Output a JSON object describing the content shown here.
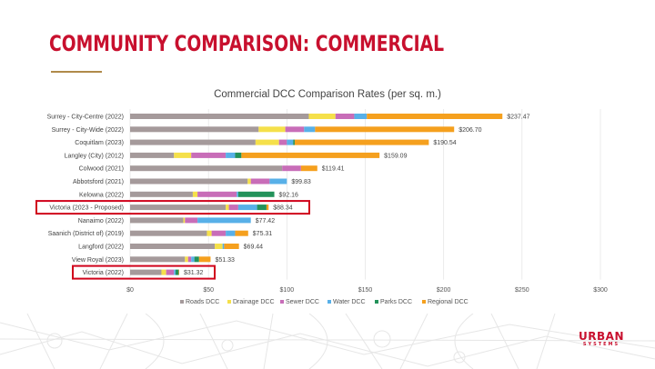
{
  "slide": {
    "title": "COMMUNITY COMPARISON: COMMERCIAL",
    "logo_main": "URBAN",
    "logo_sub": "SYSTEMS"
  },
  "colors": {
    "title_red": "#c8102e",
    "accent_gold": "#b08a4a",
    "highlight_box": "#d0021b"
  },
  "chart_data": {
    "type": "bar",
    "orientation": "horizontal",
    "stacked": true,
    "title": "Commercial DCC Comparison Rates (per sq. m.)",
    "xlim": [
      0,
      300
    ],
    "xticks": [
      0,
      50,
      100,
      150,
      200,
      250,
      300
    ],
    "xtick_labels": [
      "$0",
      "$50",
      "$100",
      "$150",
      "$200",
      "$250",
      "$300"
    ],
    "grid": "vertical",
    "legend_position": "bottom",
    "categories": [
      "Surrey - City-Centre (2022)",
      "Surrey - City-Wide (2022)",
      "Coquitlam (2023)",
      "Langley (City) (2012)",
      "Colwood (2021)",
      "Abbotsford (2021)",
      "Kelowna (2022)",
      "Victoria (2023 - Proposed)",
      "Nanaimo (2022)",
      "Saanich (District of) (2019)",
      "Langford (2022)",
      "View Royal (2023)",
      "Victoria (2022)"
    ],
    "totals": [
      "$237.47",
      "$206.70",
      "$190.54",
      "$159.09",
      "$119.41",
      "$99.83",
      "$92.16",
      "$88.34",
      "$77.42",
      "$75.31",
      "$69.44",
      "$51.33",
      "$31.32"
    ],
    "highlighted": [
      "Victoria (2023 - Proposed)",
      "Victoria (2022)"
    ],
    "series": [
      {
        "name": "Roads DCC",
        "color": "#a59a9b",
        "values": [
          114,
          82,
          80,
          28,
          97,
          75,
          40,
          61,
          34,
          49,
          54,
          35,
          20
        ]
      },
      {
        "name": "Drainage DCC",
        "color": "#f5e04a",
        "values": [
          17,
          17,
          15,
          11,
          0,
          2,
          3,
          2,
          1,
          3,
          5,
          2,
          3
        ]
      },
      {
        "name": "Sewer DCC",
        "color": "#c86db8",
        "values": [
          12,
          12,
          5,
          22,
          12,
          12,
          25,
          6,
          8,
          9,
          0,
          2,
          5
        ]
      },
      {
        "name": "Water DCC",
        "color": "#58b0e8",
        "values": [
          8,
          7,
          4,
          6,
          0,
          11,
          1,
          12,
          34,
          6,
          1,
          2,
          1
        ]
      },
      {
        "name": "Parks DCC",
        "color": "#23925a",
        "values": [
          0,
          0,
          1,
          4,
          0,
          0,
          23,
          6,
          0,
          0,
          0,
          3,
          2
        ]
      },
      {
        "name": "Regional DCC",
        "color": "#f5a01e",
        "values": [
          86.47,
          88.7,
          85.54,
          88.09,
          10.41,
          0,
          0,
          1.34,
          0,
          8.31,
          9.44,
          7.33,
          0.32
        ]
      }
    ]
  }
}
